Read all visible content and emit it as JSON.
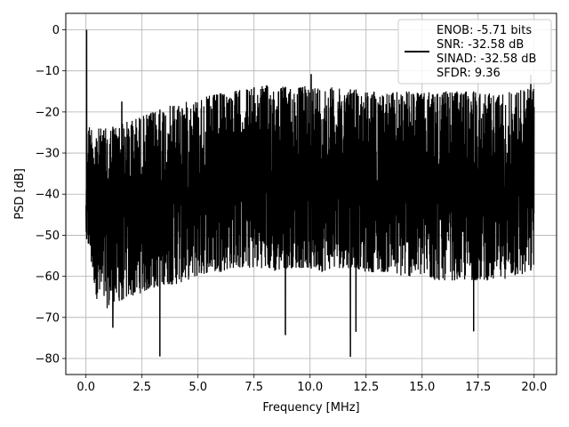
{
  "chart_data": {
    "type": "line",
    "title": "",
    "xlabel": "Frequency [MHz]",
    "ylabel": "PSD [dB]",
    "xlim": [
      -0.9,
      21.0
    ],
    "ylim": [
      -83.9,
      4.0
    ],
    "x_ticks": [
      0.0,
      2.5,
      5.0,
      7.5,
      10.0,
      12.5,
      15.0,
      17.5,
      20.0
    ],
    "x_tick_labels": [
      "0.0",
      "2.5",
      "5.0",
      "7.5",
      "10.0",
      "12.5",
      "15.0",
      "17.5",
      "20.0"
    ],
    "y_ticks": [
      0,
      -10,
      -20,
      -30,
      -40,
      -50,
      -60,
      -70,
      -80
    ],
    "y_tick_labels": [
      "0",
      "−10",
      "−20",
      "−30",
      "−40",
      "−50",
      "−60",
      "−70",
      "−80"
    ],
    "grid": true,
    "legend_position": "top-right",
    "legend_entries": [
      "ENOB: -5.71 bits",
      "SNR: -32.58 dB",
      "SINAD: -32.58 dB",
      "SFDR: 9.36"
    ],
    "line_color": "#000000",
    "series": [
      {
        "upper_envelope": {
          "x": [
            0.0,
            0.05,
            0.5,
            1.0,
            1.5,
            2.0,
            2.5,
            3.0,
            3.5,
            4.0,
            4.5,
            5.0,
            5.5,
            6.0,
            6.5,
            7.0,
            7.5,
            8.0,
            8.5,
            9.0,
            9.5,
            10.0,
            10.5,
            11.0,
            11.5,
            12.0,
            12.5,
            13.0,
            13.5,
            14.0,
            14.5,
            15.0,
            15.5,
            16.0,
            16.5,
            17.0,
            17.5,
            18.0,
            18.5,
            19.0,
            19.5,
            20.0
          ],
          "y": [
            -40,
            -23,
            -24,
            -24,
            -23,
            -22,
            -21,
            -20,
            -19,
            -18,
            -17.5,
            -17,
            -16,
            -15.5,
            -15,
            -14.5,
            -14,
            -13.5,
            -13.5,
            -14,
            -14,
            -13.5,
            -14,
            -14,
            -14.5,
            -14.5,
            -15,
            -15,
            -15.5,
            -15,
            -15,
            -15.5,
            -15,
            -15,
            -15,
            -15,
            -15,
            -15.5,
            -15.5,
            -15,
            -14.5,
            -14
          ]
        },
        "lower_envelope": {
          "x": [
            0.0,
            0.5,
            1.0,
            1.5,
            2.0,
            2.5,
            3.0,
            3.5,
            4.0,
            4.5,
            5.0,
            5.5,
            6.0,
            6.5,
            7.0,
            7.5,
            8.0,
            8.5,
            9.0,
            9.5,
            10.0,
            10.5,
            11.0,
            11.5,
            12.0,
            12.5,
            13.0,
            13.5,
            14.0,
            14.5,
            15.0,
            15.5,
            16.0,
            16.5,
            17.0,
            17.5,
            18.0,
            18.5,
            19.0,
            19.5,
            20.0
          ],
          "y": [
            -50,
            -66,
            -68,
            -66,
            -65,
            -64,
            -63,
            -62,
            -62,
            -61,
            -60,
            -59,
            -59,
            -58,
            -58,
            -58,
            -58,
            -59,
            -58,
            -58,
            -58,
            -59,
            -58,
            -58,
            -58,
            -59,
            -59,
            -59,
            -60,
            -60,
            -60,
            -61,
            -61,
            -61,
            -61,
            -61,
            -61,
            -61,
            -60,
            -60,
            -58
          ]
        },
        "spikes": [
          {
            "x": 0.03,
            "y": 0.0
          },
          {
            "x": 1.6,
            "y": -17.5
          },
          {
            "x": 1.2,
            "y": -72.5
          },
          {
            "x": 3.3,
            "y": -79.5
          },
          {
            "x": 8.9,
            "y": -74.3
          },
          {
            "x": 10.05,
            "y": -10.8
          },
          {
            "x": 11.8,
            "y": -79.6
          },
          {
            "x": 12.05,
            "y": -73.5
          },
          {
            "x": 17.3,
            "y": -73.4
          },
          {
            "x": 19.85,
            "y": -11.0
          }
        ]
      }
    ]
  }
}
